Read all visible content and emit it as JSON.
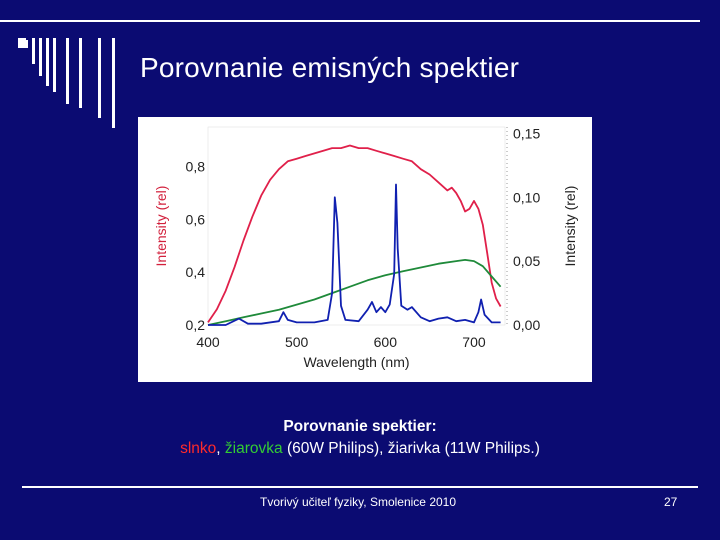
{
  "slide": {
    "title": "Porovnanie emisných spektier",
    "caption_line1": "Porovnanie spektier:",
    "caption_sun": "slnko",
    "caption_sep1": ", ",
    "caption_bulb": "žiarovka",
    "caption_rest": " (60W Philips), žiarivka (11W Philips.)",
    "footer": "Tvorivý učiteľ fyziky, Smolenice 2010",
    "page_number": "27"
  },
  "colors": {
    "background": "#0b0b72",
    "sun": "#e0204a",
    "bulb": "#1f8a3a",
    "fluorescent": "#1020b0",
    "left_axis": "#d2203c"
  },
  "chart_data": {
    "type": "line",
    "xlabel": "Wavelength (nm)",
    "ylabel_left": "Intensity (rel)",
    "ylabel_right": "Intensity (rel)",
    "xlim": [
      400,
      735
    ],
    "ylim_left": [
      0.2,
      0.95
    ],
    "ylim_right": [
      0.0,
      0.155
    ],
    "x_ticks": [
      400,
      500,
      600,
      700
    ],
    "y_ticks_left": [
      "0,2",
      "0,4",
      "0,6",
      "0,8"
    ],
    "y_ticks_right": [
      "0,00",
      "0,05",
      "0,10",
      "0,15"
    ],
    "x_tick_labels": [
      "400",
      "500",
      "600",
      "700"
    ],
    "grid": false,
    "series": [
      {
        "key": "sun",
        "axis": "left",
        "points": [
          [
            400,
            0.21
          ],
          [
            410,
            0.26
          ],
          [
            420,
            0.33
          ],
          [
            430,
            0.42
          ],
          [
            440,
            0.52
          ],
          [
            450,
            0.61
          ],
          [
            460,
            0.69
          ],
          [
            470,
            0.75
          ],
          [
            480,
            0.79
          ],
          [
            490,
            0.82
          ],
          [
            500,
            0.83
          ],
          [
            510,
            0.84
          ],
          [
            520,
            0.85
          ],
          [
            530,
            0.86
          ],
          [
            540,
            0.87
          ],
          [
            550,
            0.87
          ],
          [
            560,
            0.88
          ],
          [
            570,
            0.87
          ],
          [
            580,
            0.87
          ],
          [
            590,
            0.86
          ],
          [
            600,
            0.85
          ],
          [
            610,
            0.84
          ],
          [
            620,
            0.83
          ],
          [
            630,
            0.82
          ],
          [
            640,
            0.79
          ],
          [
            650,
            0.77
          ],
          [
            660,
            0.74
          ],
          [
            670,
            0.71
          ],
          [
            675,
            0.72
          ],
          [
            680,
            0.7
          ],
          [
            685,
            0.67
          ],
          [
            690,
            0.63
          ],
          [
            695,
            0.64
          ],
          [
            700,
            0.67
          ],
          [
            705,
            0.64
          ],
          [
            710,
            0.58
          ],
          [
            715,
            0.47
          ],
          [
            720,
            0.36
          ],
          [
            725,
            0.3
          ],
          [
            730,
            0.27
          ]
        ]
      },
      {
        "key": "bulb",
        "axis": "right",
        "points": [
          [
            400,
            0.0
          ],
          [
            420,
            0.003
          ],
          [
            440,
            0.006
          ],
          [
            460,
            0.009
          ],
          [
            480,
            0.012
          ],
          [
            500,
            0.016
          ],
          [
            520,
            0.02
          ],
          [
            540,
            0.025
          ],
          [
            560,
            0.03
          ],
          [
            580,
            0.035
          ],
          [
            600,
            0.039
          ],
          [
            620,
            0.042
          ],
          [
            640,
            0.045
          ],
          [
            660,
            0.048
          ],
          [
            680,
            0.05
          ],
          [
            690,
            0.051
          ],
          [
            700,
            0.05
          ],
          [
            710,
            0.046
          ],
          [
            720,
            0.038
          ],
          [
            730,
            0.03
          ]
        ]
      },
      {
        "key": "fluorescent",
        "axis": "right",
        "points": [
          [
            400,
            0.0
          ],
          [
            420,
            0.0
          ],
          [
            435,
            0.005
          ],
          [
            445,
            0.001
          ],
          [
            460,
            0.001
          ],
          [
            480,
            0.003
          ],
          [
            485,
            0.01
          ],
          [
            490,
            0.004
          ],
          [
            500,
            0.002
          ],
          [
            520,
            0.002
          ],
          [
            535,
            0.004
          ],
          [
            540,
            0.025
          ],
          [
            543,
            0.1
          ],
          [
            546,
            0.08
          ],
          [
            550,
            0.015
          ],
          [
            555,
            0.004
          ],
          [
            570,
            0.003
          ],
          [
            580,
            0.012
          ],
          [
            585,
            0.018
          ],
          [
            590,
            0.01
          ],
          [
            595,
            0.014
          ],
          [
            600,
            0.01
          ],
          [
            605,
            0.016
          ],
          [
            610,
            0.04
          ],
          [
            612,
            0.11
          ],
          [
            614,
            0.06
          ],
          [
            618,
            0.015
          ],
          [
            625,
            0.012
          ],
          [
            630,
            0.014
          ],
          [
            640,
            0.006
          ],
          [
            650,
            0.003
          ],
          [
            660,
            0.005
          ],
          [
            670,
            0.006
          ],
          [
            680,
            0.003
          ],
          [
            690,
            0.004
          ],
          [
            700,
            0.002
          ],
          [
            705,
            0.01
          ],
          [
            708,
            0.02
          ],
          [
            712,
            0.008
          ],
          [
            720,
            0.002
          ],
          [
            730,
            0.002
          ]
        ]
      }
    ]
  }
}
